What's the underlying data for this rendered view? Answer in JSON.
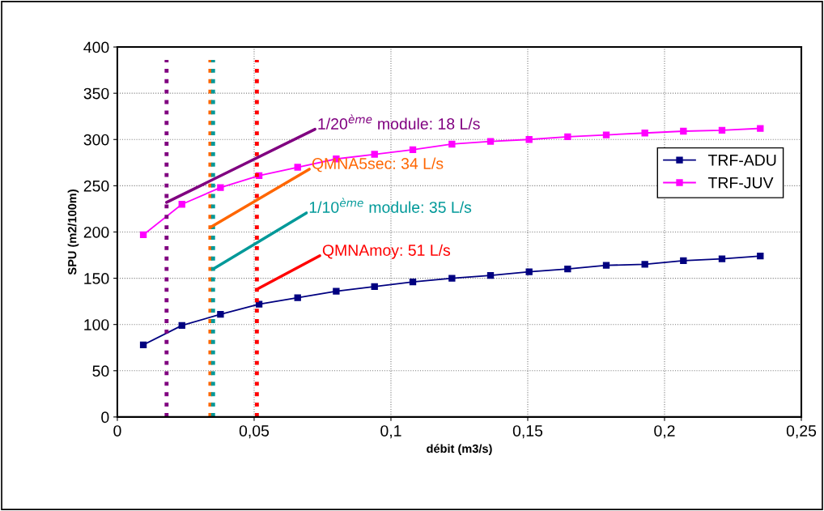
{
  "chart_data": {
    "type": "line",
    "xlabel": "débit (m3/s)",
    "ylabel": "SPU (m2/100m)",
    "xlim": [
      0,
      0.25
    ],
    "xticks": [
      {
        "value": 0,
        "label": "0"
      },
      {
        "value": 0.05,
        "label": "0,05"
      },
      {
        "value": 0.1,
        "label": "0,1"
      },
      {
        "value": 0.15,
        "label": "0,15"
      },
      {
        "value": 0.2,
        "label": "0,2"
      },
      {
        "value": 0.25,
        "label": "0,25"
      }
    ],
    "ylim": [
      0,
      400
    ],
    "yticks": [
      0,
      50,
      100,
      150,
      200,
      250,
      300,
      350,
      400
    ],
    "grid": true,
    "legend": "right",
    "marker": "square",
    "line_style": "solid",
    "x": [
      0.0095,
      0.0236,
      0.0377,
      0.0518,
      0.0659,
      0.08,
      0.094,
      0.108,
      0.1223,
      0.1364,
      0.1505,
      0.1646,
      0.1787,
      0.1928,
      0.2069,
      0.221,
      0.235
    ],
    "series": [
      {
        "name": "TRF-ADU",
        "color": "#000080",
        "values": [
          78,
          99,
          111,
          122,
          129,
          136,
          141,
          146,
          150,
          153,
          157,
          160,
          164,
          165,
          169,
          171,
          174
        ]
      },
      {
        "name": "TRF-JUV",
        "color": "#ff00ff",
        "values": [
          197,
          230,
          248,
          261,
          270,
          279,
          284,
          289,
          295,
          298,
          300,
          303,
          305,
          307,
          309,
          310,
          312
        ]
      }
    ],
    "ref_lines": [
      {
        "axis": "x",
        "value": 0.018,
        "label": "1/20$^{ème}$ module: 18 L/s",
        "color": "#800080",
        "line_style": "dotted"
      },
      {
        "axis": "x",
        "value": 0.034,
        "label": "QMNA5sec: 34 L/s",
        "color": "#ff6600",
        "line_style": "dotted"
      },
      {
        "axis": "x",
        "value": 0.035,
        "label": "1/10$^{ème}$ module: 35 L/s",
        "color": "#009999",
        "line_style": "dotted"
      },
      {
        "axis": "x",
        "value": 0.051,
        "label": "QMNAmoy: 51 L/s",
        "color": "#ff0000",
        "line_style": "dotted"
      }
    ]
  }
}
